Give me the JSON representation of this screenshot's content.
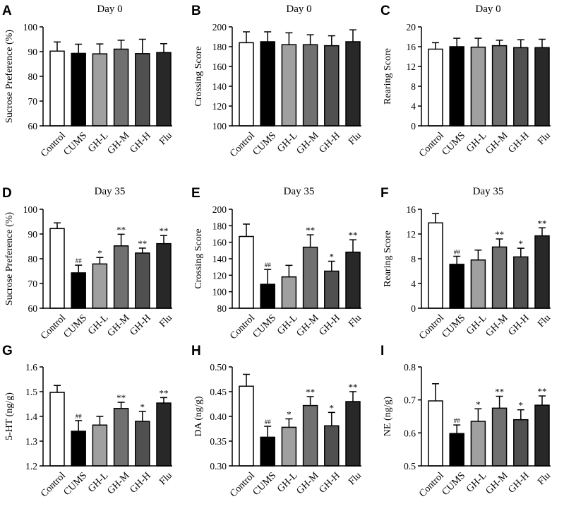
{
  "fill_colors": [
    "#ffffff",
    "#000000",
    "#a0a0a0",
    "#707070",
    "#505050",
    "#282828"
  ],
  "chart_data": [
    {
      "letter": "A",
      "type": "bar",
      "title": "Day 0",
      "ylabel": "Sucrose Preference (%)",
      "categories": [
        "Control",
        "CUMS",
        "GH-L",
        "GH-M",
        "GH-H",
        "Flu"
      ],
      "ylim": [
        60,
        100
      ],
      "yticks": [
        "60",
        "70",
        "80",
        "90",
        "100"
      ],
      "values": [
        90.2,
        89.3,
        89.1,
        91.0,
        89.2,
        89.6
      ],
      "errors": [
        3.7,
        3.7,
        4.0,
        3.6,
        5.8,
        3.6
      ],
      "annotations": [
        "",
        "",
        "",
        "",
        "",
        ""
      ]
    },
    {
      "letter": "B",
      "type": "bar",
      "title": "Day 0",
      "ylabel": "Crossing Score",
      "categories": [
        "Control",
        "CUMS",
        "GH-L",
        "GH-M",
        "GH-H",
        "Flu"
      ],
      "ylim": [
        100,
        200
      ],
      "yticks": [
        "100",
        "120",
        "140",
        "160",
        "180",
        "200"
      ],
      "values": [
        184,
        185,
        182,
        182,
        181,
        185
      ],
      "errors": [
        11,
        10,
        12,
        10,
        10,
        12
      ],
      "annotations": [
        "",
        "",
        "",
        "",
        "",
        ""
      ]
    },
    {
      "letter": "C",
      "type": "bar",
      "title": "Day 0",
      "ylabel": "Rearing Score",
      "categories": [
        "Control",
        "CUMS",
        "GH-L",
        "GH-M",
        "GH-H",
        "Flu"
      ],
      "ylim": [
        0,
        20
      ],
      "yticks": [
        "0",
        "4",
        "8",
        "12",
        "16",
        "20"
      ],
      "values": [
        15.5,
        16.0,
        15.9,
        16.2,
        15.8,
        15.8
      ],
      "errors": [
        1.3,
        1.7,
        1.8,
        1.1,
        1.6,
        1.7
      ],
      "annotations": [
        "",
        "",
        "",
        "",
        "",
        ""
      ]
    },
    {
      "letter": "D",
      "type": "bar",
      "title": "Day 35",
      "ylabel": "Sucrose Preference (%)",
      "categories": [
        "Control",
        "CUMS",
        "GH-L",
        "GH-M",
        "GH-H",
        "Flu"
      ],
      "ylim": [
        60,
        100
      ],
      "yticks": [
        "60",
        "70",
        "80",
        "90",
        "100"
      ],
      "values": [
        92.2,
        74.3,
        77.9,
        85.2,
        82.3,
        86.1
      ],
      "errors": [
        2.3,
        3.1,
        2.6,
        4.7,
        2.0,
        3.3
      ],
      "annotations": [
        "",
        "##",
        "*",
        "**",
        "**",
        "**"
      ]
    },
    {
      "letter": "E",
      "type": "bar",
      "title": "Day 35",
      "ylabel": "Crossing Score",
      "categories": [
        "Control",
        "CUMS",
        "GH-L",
        "GH-M",
        "GH-H",
        "Flu"
      ],
      "ylim": [
        80,
        200
      ],
      "yticks": [
        "80",
        "100",
        "120",
        "140",
        "160",
        "180",
        "200"
      ],
      "values": [
        167,
        109,
        118,
        154,
        125,
        148
      ],
      "errors": [
        15,
        18,
        14,
        15,
        12,
        15
      ],
      "annotations": [
        "",
        "##",
        "",
        "**",
        "*",
        "**"
      ]
    },
    {
      "letter": "F",
      "type": "bar",
      "title": "Day 35",
      "ylabel": "Rearing Score",
      "categories": [
        "Control",
        "CUMS",
        "GH-L",
        "GH-M",
        "GH-H",
        "Flu"
      ],
      "ylim": [
        0,
        16
      ],
      "yticks": [
        "0",
        "4",
        "8",
        "12",
        "16"
      ],
      "values": [
        13.8,
        7.1,
        7.8,
        9.9,
        8.3,
        11.7
      ],
      "errors": [
        1.5,
        1.3,
        1.6,
        1.3,
        1.4,
        1.3
      ],
      "annotations": [
        "",
        "##",
        "",
        "**",
        "*",
        "**"
      ]
    },
    {
      "letter": "G",
      "type": "bar",
      "title": "",
      "ylabel": "5-HT (ng/g)",
      "categories": [
        "Control",
        "CUMS",
        "GH-L",
        "GH-M",
        "GH-H",
        "Flu"
      ],
      "ylim": [
        1.2,
        1.6
      ],
      "yticks": [
        "1.2",
        "1.3",
        "1.4",
        "1.5",
        "1.6"
      ],
      "values": [
        1.497,
        1.34,
        1.365,
        1.432,
        1.38,
        1.454
      ],
      "errors": [
        0.028,
        0.043,
        0.035,
        0.025,
        0.04,
        0.022
      ],
      "annotations": [
        "",
        "##",
        "",
        "**",
        "*",
        "**"
      ]
    },
    {
      "letter": "H",
      "type": "bar",
      "title": "",
      "ylabel": "DA (ng/g)",
      "categories": [
        "Control",
        "CUMS",
        "GH-L",
        "GH-M",
        "GH-H",
        "Flu"
      ],
      "ylim": [
        0.3,
        0.5
      ],
      "yticks": [
        "0.30",
        "0.35",
        "0.40",
        "0.45",
        "0.50"
      ],
      "values": [
        0.461,
        0.358,
        0.378,
        0.422,
        0.381,
        0.43
      ],
      "errors": [
        0.024,
        0.022,
        0.017,
        0.018,
        0.027,
        0.02
      ],
      "annotations": [
        "",
        "##",
        "*",
        "**",
        "*",
        "**"
      ]
    },
    {
      "letter": "I",
      "type": "bar",
      "title": "",
      "ylabel": "NE (ng/g)",
      "categories": [
        "Control",
        "CUMS",
        "GH-L",
        "GH-M",
        "GH-H",
        "Flu"
      ],
      "ylim": [
        0.5,
        0.8
      ],
      "yticks": [
        "0.5",
        "0.6",
        "0.7",
        "0.8"
      ],
      "values": [
        0.697,
        0.598,
        0.635,
        0.675,
        0.64,
        0.684
      ],
      "errors": [
        0.052,
        0.026,
        0.038,
        0.036,
        0.03,
        0.028
      ],
      "annotations": [
        "",
        "##",
        "*",
        "**",
        "*",
        "**"
      ]
    }
  ]
}
